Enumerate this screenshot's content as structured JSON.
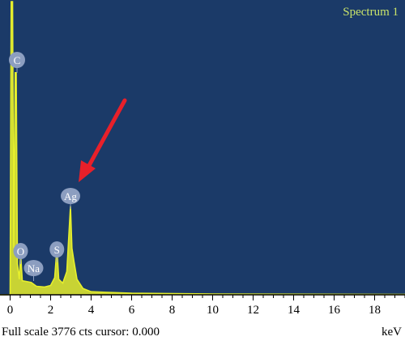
{
  "chart_data": {
    "type": "line",
    "title": "Spectrum 1",
    "xlabel": "keV",
    "xlim": [
      -0.5,
      19.5
    ],
    "ylim": [
      0,
      3776
    ],
    "x_ticks": [
      "0",
      "2",
      "4",
      "6",
      "8",
      "10",
      "12",
      "14",
      "16",
      "18"
    ],
    "series": [
      {
        "values": [
          {
            "x": -0.5,
            "y": 0
          },
          {
            "x": 0.0,
            "y": 0
          },
          {
            "x": 0.05,
            "y": 3776
          },
          {
            "x": 0.12,
            "y": 3776
          },
          {
            "x": 0.18,
            "y": 600
          },
          {
            "x": 0.25,
            "y": 2860
          },
          {
            "x": 0.3,
            "y": 2860
          },
          {
            "x": 0.36,
            "y": 400
          },
          {
            "x": 0.45,
            "y": 200
          },
          {
            "x": 0.52,
            "y": 520
          },
          {
            "x": 0.6,
            "y": 180
          },
          {
            "x": 1.04,
            "y": 160
          },
          {
            "x": 1.3,
            "y": 110
          },
          {
            "x": 1.7,
            "y": 100
          },
          {
            "x": 2.0,
            "y": 120
          },
          {
            "x": 2.2,
            "y": 220
          },
          {
            "x": 2.31,
            "y": 600
          },
          {
            "x": 2.4,
            "y": 200
          },
          {
            "x": 2.6,
            "y": 150
          },
          {
            "x": 2.8,
            "y": 300
          },
          {
            "x": 2.98,
            "y": 1140
          },
          {
            "x": 3.05,
            "y": 600
          },
          {
            "x": 3.15,
            "y": 430
          },
          {
            "x": 3.3,
            "y": 200
          },
          {
            "x": 3.6,
            "y": 80
          },
          {
            "x": 4.0,
            "y": 40
          },
          {
            "x": 6.0,
            "y": 20
          },
          {
            "x": 10.0,
            "y": 10
          },
          {
            "x": 19.5,
            "y": 5
          }
        ]
      }
    ],
    "peak_labels": [
      {
        "text": "C",
        "x": 0.1,
        "y": 3776
      },
      {
        "text": "O",
        "x": 0.52,
        "y": 520
      },
      {
        "text": "Na",
        "x": 1.04,
        "y": 160
      },
      {
        "text": "S",
        "x": 2.31,
        "y": 600
      },
      {
        "text": "Ag",
        "x": 2.98,
        "y": 1140
      }
    ],
    "colors": {
      "background": "#1b3a68",
      "trace": "#e6ef2c",
      "title": "#c9e36a",
      "peak_label_fill": "#8c9ec0",
      "arrow": "#e8202a",
      "axis": "#000000"
    },
    "grid": false
  },
  "footer": {
    "left": "Full scale 3776 cts cursor: 0.000",
    "right": "keV"
  }
}
